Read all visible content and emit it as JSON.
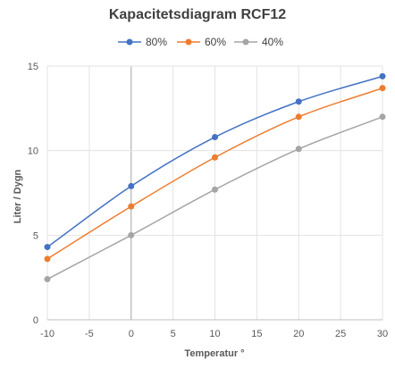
{
  "chart_data": {
    "type": "line",
    "title": "Kapacitetsdiagram RCF12",
    "xlabel": "Temperatur °",
    "ylabel": "Liter / Dygn",
    "xlim": [
      -10,
      30
    ],
    "ylim": [
      0,
      15
    ],
    "x_ticks": [
      "-10",
      "-5",
      "0",
      "5",
      "10",
      "15",
      "20",
      "25",
      "30"
    ],
    "y_ticks": [
      "0",
      "5",
      "10",
      "15"
    ],
    "grid": true,
    "legend_position": "top",
    "smooth": true,
    "series": [
      {
        "name": "80%",
        "color": "#4472C4",
        "x": [
          -10,
          0,
          10,
          20,
          30
        ],
        "y": [
          4.3,
          7.9,
          10.8,
          12.9,
          14.4
        ]
      },
      {
        "name": "60%",
        "color": "#ED7D31",
        "x": [
          -10,
          0,
          10,
          20,
          30
        ],
        "y": [
          3.6,
          6.7,
          9.6,
          12.0,
          13.7
        ]
      },
      {
        "name": "40%",
        "color": "#A5A5A5",
        "x": [
          -10,
          0,
          10,
          20,
          30
        ],
        "y": [
          2.4,
          5.0,
          7.7,
          10.1,
          12.0
        ]
      }
    ]
  }
}
